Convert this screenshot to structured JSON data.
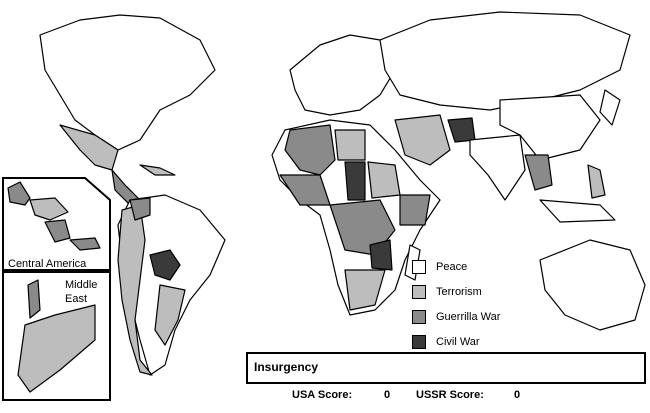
{
  "insets": {
    "central_america": "Central America",
    "middle_east": "Middle\nEast"
  },
  "legend": [
    {
      "label": "Peace",
      "color": "#ffffff"
    },
    {
      "label": "Terrorism",
      "color": "#bdbdbd"
    },
    {
      "label": "Guerrilla War",
      "color": "#8a8a8a"
    },
    {
      "label": "Civil War",
      "color": "#3a3a3a"
    }
  ],
  "status": {
    "title": "Insurgency",
    "usa_label": "USA Score:",
    "usa_value": "0",
    "ussr_label": "USSR Score:",
    "ussr_value": "0"
  }
}
